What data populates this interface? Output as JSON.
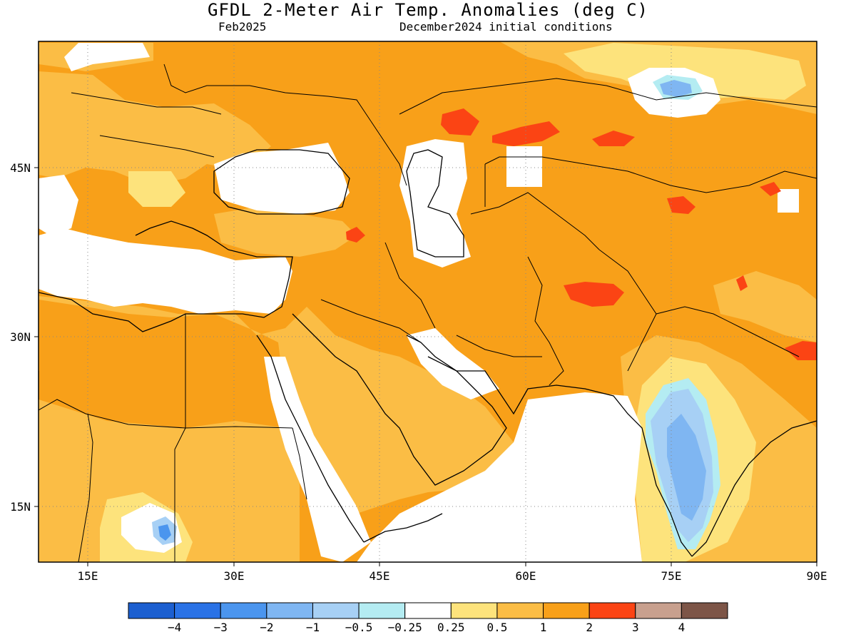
{
  "header": {
    "title": "GFDL 2-Meter Air Temp. Anomalies (deg C)",
    "valid_month": "Feb2025",
    "init": "December2024 initial conditions"
  },
  "map": {
    "lon_range": [
      10,
      90
    ],
    "lat_range": [
      10,
      55
    ],
    "lon_ticks": [
      "15E",
      "30E",
      "45E",
      "60E",
      "75E",
      "90E"
    ],
    "lat_ticks": [
      "45N",
      "30N",
      "15N"
    ],
    "grid": "dotted"
  },
  "colorbar": {
    "labels": [
      "-4",
      "-3",
      "-2",
      "-1",
      "-0.5",
      "-0.25",
      "0.25",
      "0.5",
      "1",
      "2",
      "3",
      "4"
    ],
    "colors": [
      "#1c5fd0",
      "#2a72e6",
      "#4b95ee",
      "#7fb6f2",
      "#a7d0f5",
      "#b4ecf2",
      "#ffffff",
      "#fde37c",
      "#fbbd45",
      "#f8a019",
      "#fb4414",
      "#c8a08e",
      "#7d5547"
    ]
  }
}
